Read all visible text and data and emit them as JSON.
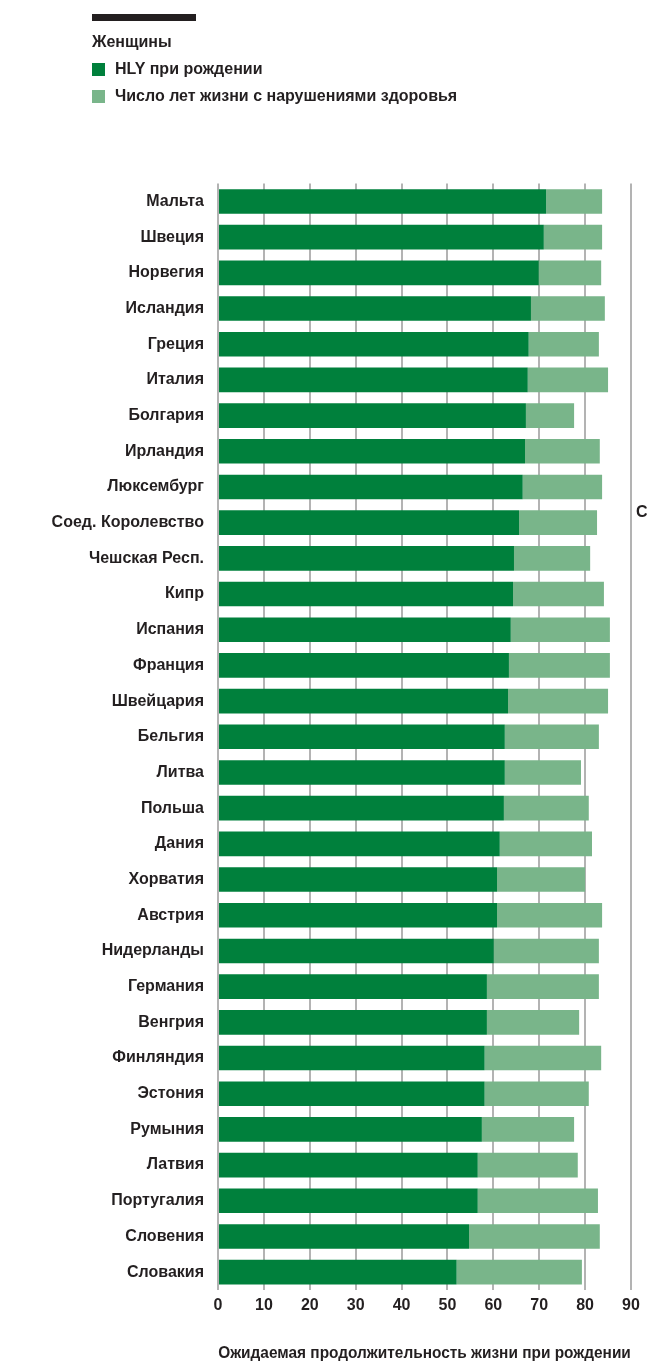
{
  "chart_data": {
    "type": "bar",
    "orientation": "horizontal",
    "stacked": true,
    "legend_title": "Женщины",
    "legend": "top left",
    "xlabel": "Ожидаемая продолжительность жизни при рождении",
    "annotations": [
      "С"
    ],
    "categories": [
      "Мальта",
      "Швеция",
      "Норвегия",
      "Исландия",
      "Греция",
      "Италия",
      "Болгария",
      "Ирландия",
      "Люксембург",
      "Соед. Королевство",
      "Чешская Респ.",
      "Кипр",
      "Испания",
      "Франция",
      "Швейцария",
      "Бельгия",
      "Литва",
      "Польша",
      "Дания",
      "Хорватия",
      "Австрия",
      "Нидерланды",
      "Германия",
      "Венгрия",
      "Финляндия",
      "Эстония",
      "Румыния",
      "Латвия",
      "Португалия",
      "Словения",
      "Словакия"
    ],
    "series": [
      {
        "name": "HLY при рождении",
        "color": "#00803c",
        "values": [
          71.5,
          71.0,
          69.9,
          68.2,
          67.7,
          67.5,
          67.1,
          66.9,
          66.4,
          65.6,
          64.5,
          64.3,
          63.8,
          63.4,
          63.2,
          62.5,
          62.5,
          62.3,
          61.4,
          60.8,
          60.8,
          60.1,
          58.6,
          58.6,
          58.1,
          58.1,
          57.5,
          56.6,
          56.6,
          54.7,
          52.0
        ]
      },
      {
        "name": "Число лет жизни с нарушениями здоровья",
        "color": "#79b58a",
        "values": [
          12.2,
          12.7,
          13.6,
          16.1,
          15.3,
          17.5,
          10.5,
          16.3,
          17.3,
          17.0,
          16.6,
          19.8,
          21.6,
          22.0,
          21.8,
          20.5,
          16.6,
          18.5,
          20.1,
          19.2,
          22.9,
          22.9,
          24.4,
          20.1,
          25.4,
          22.7,
          20.1,
          21.8,
          26.2,
          28.5,
          27.3
        ]
      }
    ],
    "xlim": [
      0,
      90
    ],
    "xticks": [
      0,
      10,
      20,
      30,
      40,
      50,
      60,
      70,
      80,
      90
    ],
    "grid": "x"
  }
}
